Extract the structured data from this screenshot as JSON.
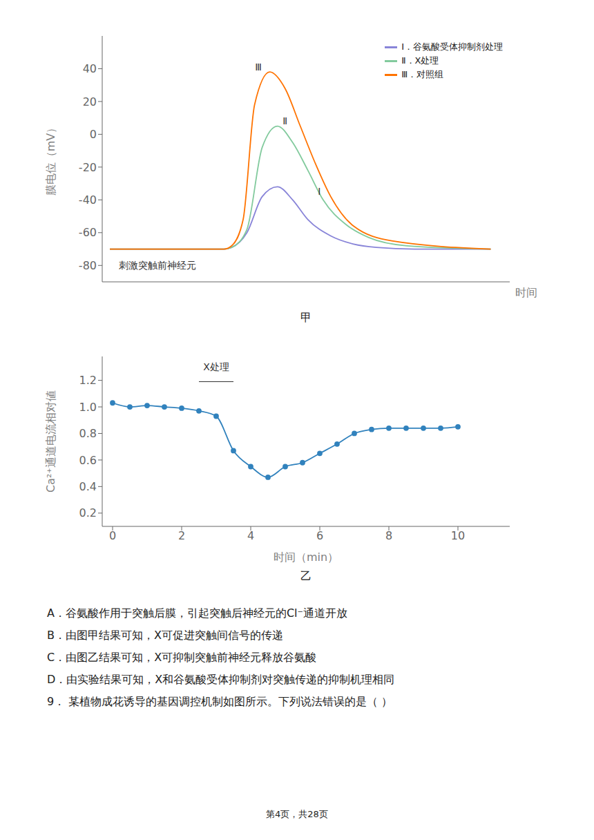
{
  "chart_data": [
    {
      "type": "line",
      "title": "甲",
      "xlabel": "时间",
      "ylabel": "膜电位（mV）",
      "xlim": [
        -0.02,
        1.05
      ],
      "ylim": [
        -90,
        60
      ],
      "yticks": [
        -80,
        -60,
        -40,
        -20,
        0,
        20,
        40
      ],
      "tick_labels": "y",
      "grid": false,
      "legend": "upper right",
      "marker": "none",
      "line_style": "solid",
      "series": [
        {
          "name": "Ⅰ．谷氨酸受体抑制剂处理",
          "color": "#8884d8",
          "x": [
            0.0,
            0.28,
            0.3,
            0.32,
            0.36,
            0.4,
            0.44,
            0.48,
            0.52,
            0.58,
            0.64,
            0.7,
            0.8,
            1.0
          ],
          "values": [
            -70,
            -70,
            -70,
            -69,
            -60,
            -38,
            -32,
            -40,
            -52,
            -62,
            -67,
            -69,
            -70,
            -70
          ]
        },
        {
          "name": "Ⅱ．X处理",
          "color": "#82ca9d",
          "x": [
            0.0,
            0.28,
            0.3,
            0.32,
            0.36,
            0.4,
            0.44,
            0.48,
            0.52,
            0.56,
            0.62,
            0.68,
            0.78,
            1.0
          ],
          "values": [
            -70,
            -70,
            -70,
            -69,
            -58,
            -8,
            5,
            -5,
            -22,
            -40,
            -55,
            -63,
            -68,
            -70
          ]
        },
        {
          "name": "Ⅲ．对照组",
          "color": "#ff7300",
          "x": [
            0.0,
            0.28,
            0.3,
            0.32,
            0.35,
            0.38,
            0.42,
            0.46,
            0.5,
            0.54,
            0.58,
            0.64,
            0.74,
            1.0
          ],
          "values": [
            -70,
            -70,
            -70,
            -68,
            -52,
            18,
            38,
            28,
            5,
            -18,
            -38,
            -56,
            -65,
            -70
          ]
        }
      ],
      "annotations": [
        {
          "text": "Ⅰ",
          "x": 0.55,
          "y": -35
        },
        {
          "text": "Ⅱ",
          "x": 0.46,
          "y": 8
        },
        {
          "text": "Ⅲ",
          "x": 0.39,
          "y": 41
        },
        {
          "text": "刺激突触前神经元",
          "x": 0.015,
          "y": -80
        }
      ]
    },
    {
      "type": "line",
      "title": "乙",
      "xlabel": "时间（min）",
      "ylabel": "Ca²⁺通道电流相对値",
      "xlim": [
        -0.3,
        11.5
      ],
      "xticks": [
        0,
        2,
        4,
        6,
        8,
        10
      ],
      "ylim": [
        0.1,
        1.38
      ],
      "yticks": [
        0.2,
        0.4,
        0.6,
        0.8,
        {
          "value": 1.0,
          "label": "1.0"
        },
        1.2
      ],
      "grid": false,
      "marker": "o",
      "line_style": "solid",
      "x": [
        0,
        0.5,
        1,
        1.5,
        2,
        2.5,
        3,
        3.5,
        4,
        4.5,
        5,
        5.5,
        6,
        6.5,
        7,
        7.5,
        8,
        8.5,
        9,
        9.5,
        10
      ],
      "values": [
        1.03,
        1.0,
        1.01,
        1.0,
        0.99,
        0.97,
        0.93,
        0.67,
        0.55,
        0.47,
        0.55,
        0.58,
        0.65,
        0.72,
        0.8,
        0.83,
        0.84,
        0.84,
        0.84,
        0.84,
        0.85
      ],
      "annotations": [
        {
          "text": "X处理",
          "x": 3.0,
          "y": 1.25,
          "bracket": {
            "x": [
              2.5,
              3.5
            ],
            "y": 1.19
          }
        }
      ]
    }
  ],
  "texts": [
    "A．谷氨酸作用于突触后膜，引起突触后神经元的Cl⁻通道开放",
    "B．由图甲结果可知，X可促进突触间信号的传递",
    "C．由图乙结果可知，X可抑制突触前神经元释放谷氨酸",
    "D．由实验结果可知，X和谷氨酸受体抑制剂对突触传递的抑制机理相同",
    "9．  某植物成花诱导的基因调控机制如图所示。下列说法错误的是（    ）"
  ],
  "footer": "第4页，共28页"
}
